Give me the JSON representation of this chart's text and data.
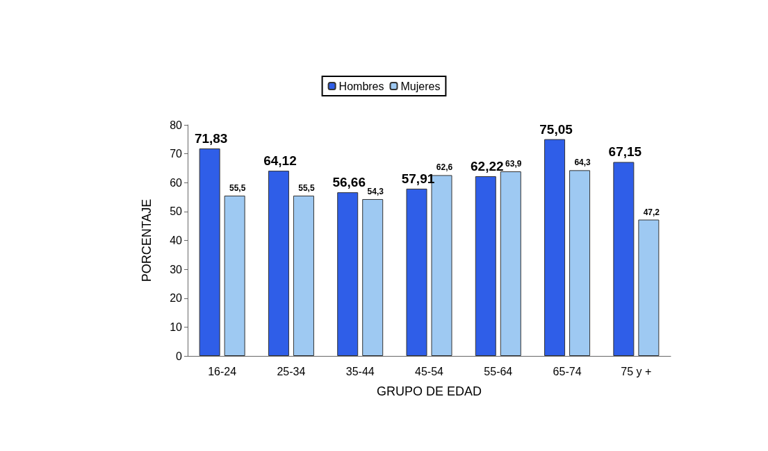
{
  "chart_data": {
    "type": "bar",
    "xlabel": "GRUPO DE EDAD",
    "ylabel": "PORCENTAJE",
    "categories": [
      "16-24",
      "25-34",
      "35-44",
      "45-54",
      "55-64",
      "65-74",
      "75 y +"
    ],
    "series": [
      {
        "name": "Hombres",
        "color": "#2f5ee8",
        "values": [
          71.83,
          64.12,
          56.66,
          57.91,
          62.22,
          75.05,
          67.15
        ],
        "value_labels": [
          "71,83",
          "64,12",
          "56,66",
          "57,91",
          "62,22",
          "75,05",
          "67,15"
        ]
      },
      {
        "name": "Mujeres",
        "color": "#9ec9f2",
        "values": [
          55.5,
          55.5,
          54.3,
          62.6,
          63.9,
          64.3,
          47.2
        ],
        "value_labels": [
          "55,5",
          "55,5",
          "54,3",
          "62,6",
          "63,9",
          "64,3",
          "47,2"
        ]
      }
    ],
    "ylim": [
      0,
      80
    ],
    "yticks": [
      0,
      10,
      20,
      30,
      40,
      50,
      60,
      70,
      80
    ],
    "grid": false,
    "legend": "top"
  }
}
